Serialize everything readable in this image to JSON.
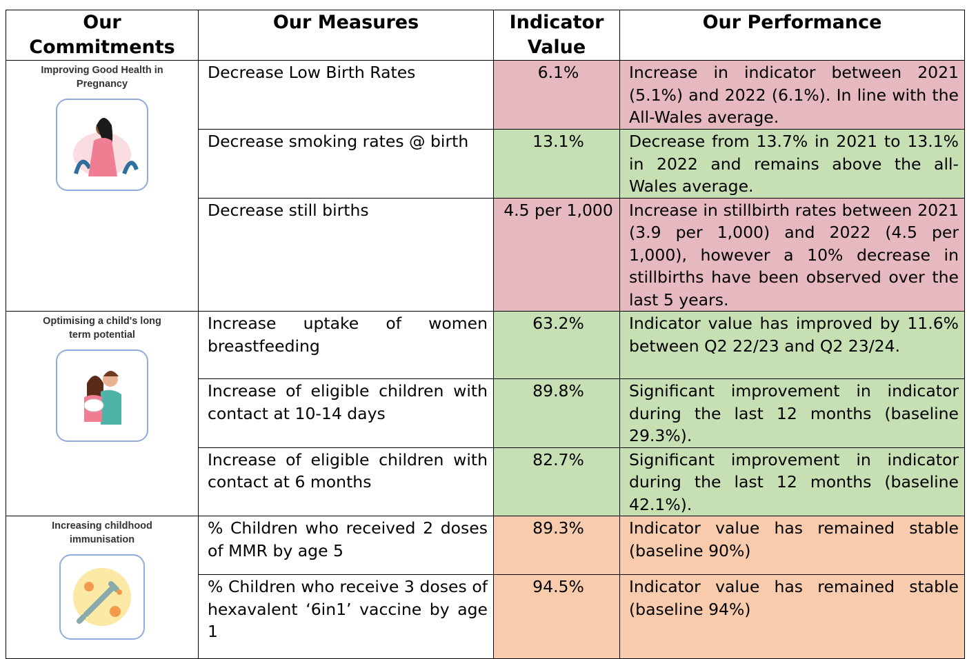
{
  "table": {
    "headers": [
      "Our Commitments",
      "Our Measures",
      "Indicator Value",
      "Our Performance"
    ],
    "groups": [
      {
        "commitment": "Improving Good Health in Pregnancy",
        "icon": "pregnancy",
        "rows": [
          {
            "measure": "Decrease Low Birth Rates",
            "value": "6.1%",
            "performance": "Increase in indicator between 2021 (5.1%) and 2022 (6.1%). In line with the All-Wales average.",
            "color": "#e6b8bf"
          },
          {
            "measure": "Decrease smoking rates @ birth",
            "value": "13.1%",
            "performance": "Decrease from 13.7% in 2021 to 13.1% in 2022 and remains above the all-Wales average.",
            "color": "#c6e0b4"
          },
          {
            "measure": "Decrease still births",
            "value": "4.5 per 1,000",
            "performance": "Increase in stillbirth rates between 2021 (3.9 per 1,000) and 2022 (4.5 per 1,000), however a 10% decrease in stillbirths have been observed over the last 5 years.",
            "color": "#e6b8bf"
          }
        ]
      },
      {
        "commitment": "Optimising a child's long term potential",
        "icon": "parents",
        "rows": [
          {
            "measure": "Increase uptake of women breastfeeding",
            "value": "63.2%",
            "performance": "Indicator value has improved by 11.6% between Q2 22/23 and Q2 23/24.",
            "color": "#c6e0b4"
          },
          {
            "measure": "Increase of eligible children with contact at 10-14 days",
            "value": "89.8%",
            "performance": "Significant improvement in indicator during the last 12 months (baseline 29.3%).",
            "color": "#c6e0b4"
          },
          {
            "measure": "Increase of eligible children with contact at 6 months",
            "value": "82.7%",
            "performance": "Significant improvement in indicator during the last 12 months (baseline 42.1%).",
            "color": "#c6e0b4"
          }
        ]
      },
      {
        "commitment": "Increasing childhood immunisation",
        "icon": "vaccine",
        "rows": [
          {
            "measure": "% Children who received 2 doses of MMR by age 5",
            "value": "89.3%",
            "performance": "Indicator value has remained stable (baseline 90%)",
            "color": "#f8cbad"
          },
          {
            "measure": "% Children who receive 3 doses of hexavalent ‘6in1’ vaccine by age 1",
            "value": "94.5%",
            "performance": "Indicator value has remained stable (baseline 94%)",
            "color": "#f8cbad"
          }
        ]
      }
    ]
  }
}
